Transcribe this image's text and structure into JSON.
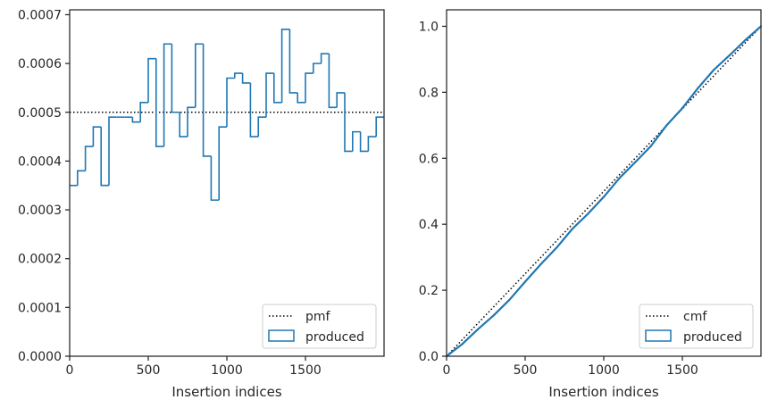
{
  "colors": {
    "produced": "#1f77b4",
    "reference": "#000000",
    "axes": "#262626"
  },
  "chart_data": [
    {
      "type": "histogram",
      "title": "",
      "xlabel": "Insertion indices",
      "ylabel": "",
      "xlim": [
        0,
        2000
      ],
      "ylim": [
        0,
        0.00071
      ],
      "grid": false,
      "legend_position": "lower-right",
      "x_ticks": [
        0,
        500,
        1000,
        1500
      ],
      "x_tick_labels": [
        "0",
        "500",
        "1000",
        "1500"
      ],
      "y_ticks": [
        0,
        0.0001,
        0.0002,
        0.0003,
        0.0004,
        0.0005,
        0.0006,
        0.0007
      ],
      "y_tick_labels": [
        "0.0000",
        "0.0001",
        "0.0002",
        "0.0003",
        "0.0004",
        "0.0005",
        "0.0006",
        "0.0007"
      ],
      "reference_line": {
        "name": "pmf",
        "y": 0.0005,
        "style": "dotted"
      },
      "series": [
        {
          "name": "produced",
          "style": "step",
          "bin_width": 50,
          "bin_starts": [
            0,
            50,
            100,
            150,
            200,
            250,
            300,
            350,
            400,
            450,
            500,
            550,
            600,
            650,
            700,
            750,
            800,
            850,
            900,
            950,
            1000,
            1050,
            1100,
            1150,
            1200,
            1250,
            1300,
            1350,
            1400,
            1450,
            1500,
            1550,
            1600,
            1650,
            1700,
            1750,
            1800,
            1850,
            1900,
            1950
          ],
          "values": [
            0.00035,
            0.00038,
            0.00043,
            0.00047,
            0.00035,
            0.00049,
            0.00049,
            0.00049,
            0.00048,
            0.00052,
            0.00061,
            0.00043,
            0.00064,
            0.0005,
            0.00045,
            0.00051,
            0.00064,
            0.00041,
            0.00032,
            0.00047,
            0.00057,
            0.00058,
            0.00056,
            0.00045,
            0.00049,
            0.00058,
            0.00052,
            0.00067,
            0.00054,
            0.00052,
            0.00058,
            0.0006,
            0.00062,
            0.00051,
            0.00054,
            0.00042,
            0.00046,
            0.00042,
            0.00045,
            0.00049
          ]
        }
      ],
      "legend": [
        "pmf",
        "produced"
      ]
    },
    {
      "type": "line",
      "title": "",
      "xlabel": "Insertion indices",
      "ylabel": "",
      "xlim": [
        0,
        2000
      ],
      "ylim": [
        0,
        1.05
      ],
      "grid": false,
      "legend_position": "lower-right",
      "x_ticks": [
        0,
        500,
        1000,
        1500
      ],
      "x_tick_labels": [
        "0",
        "500",
        "1000",
        "1500"
      ],
      "y_ticks": [
        0,
        0.2,
        0.4,
        0.6,
        0.8,
        1.0
      ],
      "y_tick_labels": [
        "0.0",
        "0.2",
        "0.4",
        "0.6",
        "0.8",
        "1.0"
      ],
      "reference_line": {
        "name": "cmf",
        "x": [
          0,
          2000
        ],
        "y": [
          0,
          1.0
        ],
        "style": "dotted"
      },
      "series": [
        {
          "name": "produced",
          "style": "step",
          "x": [
            0,
            100,
            200,
            300,
            400,
            500,
            600,
            700,
            800,
            900,
            1000,
            1100,
            1200,
            1300,
            1400,
            1500,
            1600,
            1700,
            1800,
            1900,
            2000
          ],
          "y": [
            0,
            0.037,
            0.082,
            0.124,
            0.171,
            0.226,
            0.279,
            0.329,
            0.386,
            0.432,
            0.483,
            0.54,
            0.588,
            0.637,
            0.7,
            0.752,
            0.813,
            0.868,
            0.912,
            0.958,
            1.0
          ]
        }
      ],
      "legend": [
        "cmf",
        "produced"
      ]
    }
  ]
}
